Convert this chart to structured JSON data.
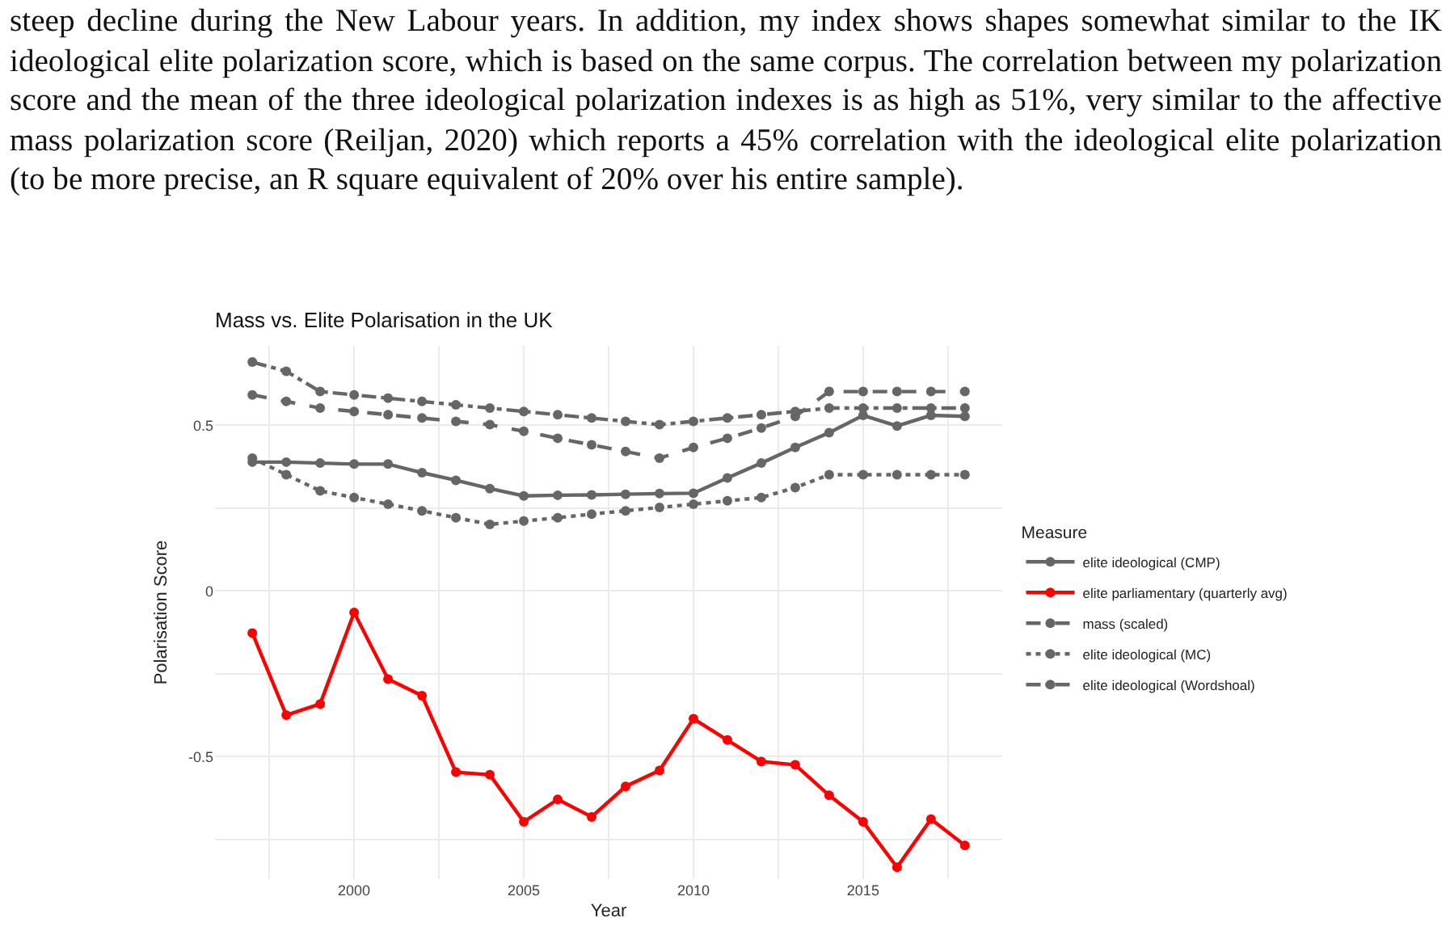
{
  "chart_data": {
    "type": "line",
    "title": "Mass vs. Elite Polarisation in the UK",
    "xlabel": "Year",
    "ylabel": "Polarisation Score",
    "legend_title": "Measure",
    "annotations": [
      "steep decline during the New Labour years. In addition, my index shows shapes somewhat similar to the IK ideological elite polarization score, which is based on the same corpus. The correlation between my polarization score and the mean of the three ideological polarization indexes is as high as 51%, very similar to the affective mass polarization score (Reiljan, 2020) which reports a 45% correlation with the ideological elite polarization (to be more precise, an R square equivalent of 20% over his entire sample)."
    ],
    "x": [
      1997,
      1998,
      1999,
      2000,
      2001,
      2002,
      2003,
      2004,
      2005,
      2006,
      2007,
      2008,
      2009,
      2010,
      2011,
      2012,
      2013,
      2014,
      2015,
      2016,
      2017,
      2018
    ],
    "xlim": [
      1995.9,
      2019.1
    ],
    "xticks": [
      {
        "value": 1997.5,
        "label": null
      },
      2000,
      {
        "value": 2002.5,
        "label": null
      },
      2005,
      {
        "value": 2007.5,
        "label": null
      },
      2010,
      {
        "value": 2012.5,
        "label": null
      },
      2015,
      {
        "value": 2017.5,
        "label": null
      }
    ],
    "ylim": [
      -0.87,
      0.74
    ],
    "yticks": [
      {
        "value": -0.75,
        "label": null
      },
      -0.5,
      {
        "value": -0.25,
        "label": null
      },
      0.0,
      {
        "value": 0.25,
        "label": null
      },
      0.5
    ],
    "grid": true,
    "legend": "right",
    "marker": "circle",
    "series": [
      {
        "name": "elite ideological (CMP)",
        "color": "#666666",
        "line_style": "solid",
        "values": [
          0.389,
          0.389,
          0.386,
          0.383,
          0.383,
          0.357,
          0.334,
          0.309,
          0.287,
          0.289,
          0.29,
          0.292,
          0.294,
          0.295,
          0.341,
          0.386,
          0.433,
          0.478,
          0.53,
          0.498,
          0.53,
          0.527
        ]
      },
      {
        "name": "elite parliamentary (quarterly avg)",
        "color": "#ff0000",
        "line_style": "solid",
        "values": [
          -0.127,
          -0.375,
          -0.341,
          -0.065,
          -0.266,
          -0.316,
          -0.547,
          -0.555,
          -0.697,
          -0.629,
          -0.682,
          -0.59,
          -0.542,
          -0.386,
          -0.45,
          -0.515,
          -0.525,
          -0.617,
          -0.697,
          -0.834,
          -0.689,
          -0.768
        ]
      },
      {
        "name": "mass (scaled)",
        "color": "#666666",
        "line_style": "dashed",
        "values": [
          0.592,
          0.572,
          0.552,
          0.542,
          0.532,
          0.522,
          0.512,
          0.502,
          0.482,
          0.461,
          0.441,
          0.421,
          0.401,
          0.433,
          0.461,
          0.492,
          0.527,
          0.602,
          0.602,
          0.602,
          0.602,
          0.602
        ]
      },
      {
        "name": "elite ideological (MC)",
        "color": "#666666",
        "line_style": "dotted",
        "values": [
          0.401,
          0.351,
          0.302,
          0.282,
          0.262,
          0.242,
          0.221,
          0.201,
          0.211,
          0.221,
          0.232,
          0.242,
          0.252,
          0.262,
          0.272,
          0.282,
          0.312,
          0.351,
          0.351,
          0.351,
          0.351,
          0.351
        ]
      },
      {
        "name": "elite ideological (Wordshoal)",
        "color": "#666666",
        "line_style": "dashdot",
        "values": [
          0.691,
          0.663,
          0.602,
          0.592,
          0.582,
          0.572,
          0.562,
          0.552,
          0.542,
          0.532,
          0.522,
          0.512,
          0.502,
          0.512,
          0.522,
          0.532,
          0.542,
          0.552,
          0.552,
          0.552,
          0.552,
          0.552
        ]
      }
    ]
  }
}
